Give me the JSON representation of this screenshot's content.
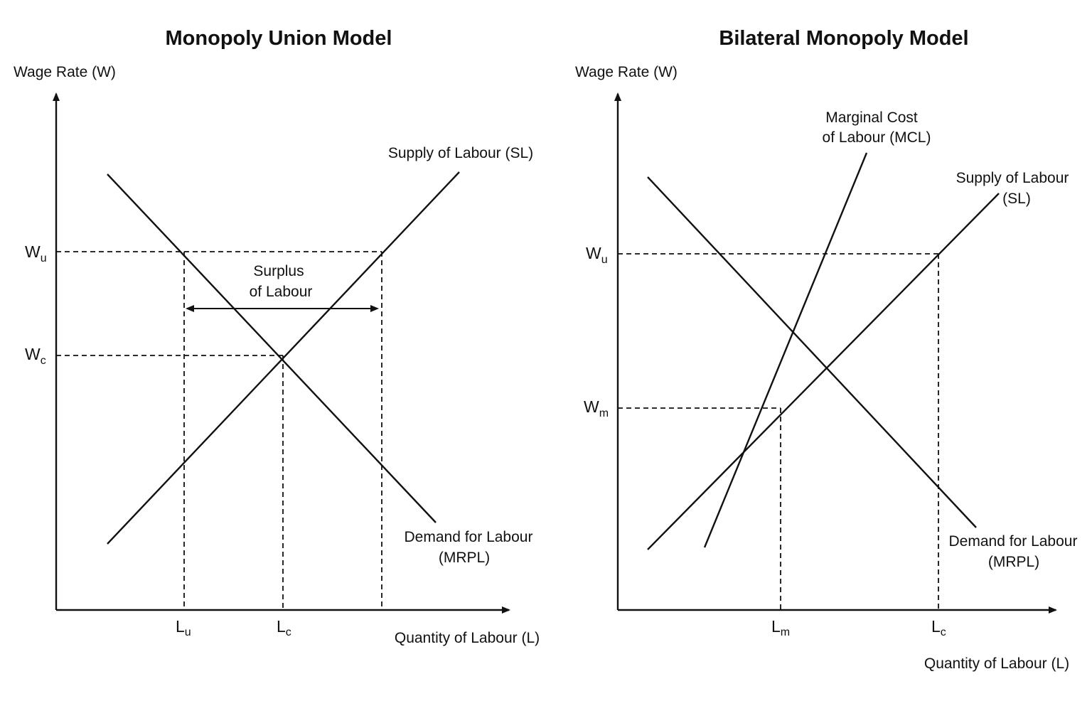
{
  "left_panel": {
    "title": "Monopoly Union Model",
    "y_axis_label": "Wage Rate (W)",
    "x_axis_label": "Quantity of Labour (L)",
    "supply_label": "Supply of Labour (SL)",
    "demand_label_line1": "Demand for Labour",
    "demand_label_line2": "(MRPL)",
    "surplus_label_line1": "Surplus",
    "surplus_label_line2": "of Labour",
    "wu": {
      "main": "W",
      "sub": "u"
    },
    "wc": {
      "main": "W",
      "sub": "c"
    },
    "lu": {
      "main": "L",
      "sub": "u"
    },
    "lc": {
      "main": "L",
      "sub": "c"
    }
  },
  "right_panel": {
    "title": "Bilateral Monopoly Model",
    "y_axis_label": "Wage Rate (W)",
    "x_axis_label": "Quantity of Labour (L)",
    "mcl_label_line1": "Marginal Cost",
    "mcl_label_line2": "of Labour (MCL)",
    "supply_label_line1": "Supply of Labour",
    "supply_label_line2": "(SL)",
    "demand_label_line1": "Demand for Labour",
    "demand_label_line2": "(MRPL)",
    "wu": {
      "main": "W",
      "sub": "u"
    },
    "wm": {
      "main": "W",
      "sub": "m"
    },
    "lm": {
      "main": "L",
      "sub": "m"
    },
    "lc": {
      "main": "L",
      "sub": "c"
    }
  }
}
